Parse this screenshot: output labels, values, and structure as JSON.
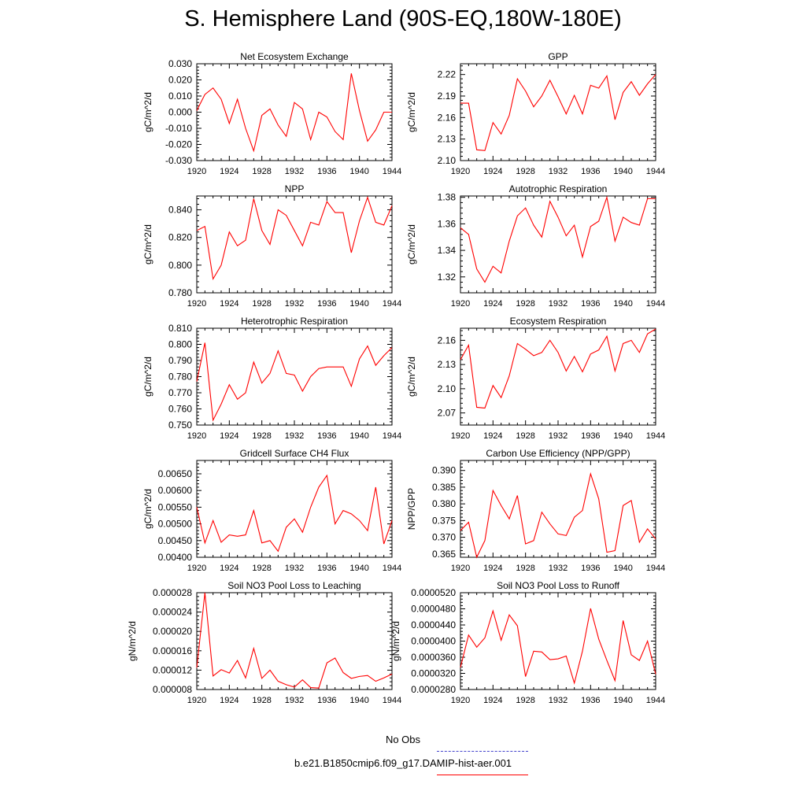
{
  "title": "S. Hemisphere Land (90S-EQ,180W-180E)",
  "legend": [
    {
      "label": "No Obs",
      "color": "#4444cc",
      "style": "dashed"
    },
    {
      "label": "b.e21.B1850cmip6.f09_g17.DAMIP-hist-aer.001",
      "color": "#ff0000",
      "style": "solid"
    }
  ],
  "chart_data": [
    {
      "type": "line",
      "title": "Net Ecosystem Exchange",
      "xlabel": "",
      "ylabel": "gC/m^2/d",
      "xlim": [
        1920,
        1944
      ],
      "ylim": [
        -0.03,
        0.03
      ],
      "xticks": [
        "1920",
        "1924",
        "1928",
        "1932",
        "1936",
        "1940",
        "1944"
      ],
      "yticks": [
        "-0.030",
        "-0.020",
        "-0.010",
        "0.000",
        "0.010",
        "0.020",
        "0.030"
      ],
      "yticks_values": [
        -0.03,
        -0.02,
        -0.01,
        0.0,
        0.01,
        0.02,
        0.03
      ],
      "series": [
        {
          "color": "#ff0000",
          "x": [
            1920,
            1921,
            1922,
            1923,
            1924,
            1925,
            1926,
            1927,
            1928,
            1929,
            1930,
            1931,
            1932,
            1933,
            1934,
            1935,
            1936,
            1937,
            1938,
            1939,
            1940,
            1941,
            1942,
            1943,
            1944
          ],
          "values": [
            0.001,
            0.011,
            0.015,
            0.008,
            -0.007,
            0.008,
            -0.01,
            -0.024,
            -0.002,
            0.002,
            -0.008,
            -0.015,
            0.006,
            0.002,
            -0.017,
            0.0,
            -0.003,
            -0.012,
            -0.017,
            0.024,
            0.001,
            -0.018,
            -0.011,
            0.0,
            0.0
          ]
        }
      ]
    },
    {
      "type": "line",
      "title": "GPP",
      "xlabel": "",
      "ylabel": "gC/m^2/d",
      "xlim": [
        1920,
        1944
      ],
      "ylim": [
        2.1,
        2.235
      ],
      "xticks": [
        "1920",
        "1924",
        "1928",
        "1932",
        "1936",
        "1940",
        "1944"
      ],
      "yticks": [
        "2.10",
        "2.13",
        "2.16",
        "2.19",
        "2.22"
      ],
      "yticks_values": [
        2.1,
        2.13,
        2.16,
        2.19,
        2.22
      ],
      "series": [
        {
          "color": "#ff0000",
          "x": [
            1920,
            1921,
            1922,
            1923,
            1924,
            1925,
            1926,
            1927,
            1928,
            1929,
            1930,
            1931,
            1932,
            1933,
            1934,
            1935,
            1936,
            1937,
            1938,
            1939,
            1940,
            1941,
            1942,
            1943,
            1944
          ],
          "values": [
            2.18,
            2.18,
            2.115,
            2.114,
            2.153,
            2.137,
            2.163,
            2.214,
            2.197,
            2.175,
            2.19,
            2.212,
            2.189,
            2.165,
            2.191,
            2.165,
            2.205,
            2.201,
            2.218,
            2.157,
            2.195,
            2.21,
            2.191,
            2.207,
            2.22
          ]
        }
      ]
    },
    {
      "type": "line",
      "title": "NPP",
      "xlabel": "",
      "ylabel": "gC/m^2/d",
      "xlim": [
        1920,
        1944
      ],
      "ylim": [
        0.78,
        0.85
      ],
      "xticks": [
        "1920",
        "1924",
        "1928",
        "1932",
        "1936",
        "1940",
        "1944"
      ],
      "yticks": [
        "0.780",
        "0.800",
        "0.820",
        "0.840"
      ],
      "yticks_values": [
        0.78,
        0.8,
        0.82,
        0.84
      ],
      "series": [
        {
          "color": "#ff0000",
          "x": [
            1920,
            1921,
            1922,
            1923,
            1924,
            1925,
            1926,
            1927,
            1928,
            1929,
            1930,
            1931,
            1932,
            1933,
            1934,
            1935,
            1936,
            1937,
            1938,
            1939,
            1940,
            1941,
            1942,
            1943,
            1944
          ],
          "values": [
            0.825,
            0.828,
            0.79,
            0.8,
            0.824,
            0.814,
            0.818,
            0.848,
            0.825,
            0.815,
            0.84,
            0.836,
            0.825,
            0.814,
            0.831,
            0.829,
            0.846,
            0.838,
            0.838,
            0.809,
            0.832,
            0.849,
            0.831,
            0.829,
            0.843
          ]
        }
      ]
    },
    {
      "type": "line",
      "title": "Autotrophic Respiration",
      "xlabel": "",
      "ylabel": "gC/m^2/d",
      "xlim": [
        1920,
        1944
      ],
      "ylim": [
        1.308,
        1.381
      ],
      "xticks": [
        "1920",
        "1924",
        "1928",
        "1932",
        "1936",
        "1940",
        "1944"
      ],
      "yticks": [
        "1.32",
        "1.34",
        "1.36",
        "1.38"
      ],
      "yticks_values": [
        1.32,
        1.34,
        1.36,
        1.38
      ],
      "series": [
        {
          "color": "#ff0000",
          "x": [
            1920,
            1921,
            1922,
            1923,
            1924,
            1925,
            1926,
            1927,
            1928,
            1929,
            1930,
            1931,
            1932,
            1933,
            1934,
            1935,
            1936,
            1937,
            1938,
            1939,
            1940,
            1941,
            1942,
            1943,
            1944
          ],
          "values": [
            1.357,
            1.352,
            1.326,
            1.316,
            1.328,
            1.323,
            1.347,
            1.366,
            1.372,
            1.359,
            1.35,
            1.377,
            1.365,
            1.351,
            1.359,
            1.335,
            1.358,
            1.362,
            1.38,
            1.347,
            1.365,
            1.361,
            1.359,
            1.379,
            1.379
          ]
        }
      ]
    },
    {
      "type": "line",
      "title": "Heterotrophic Respiration",
      "xlabel": "",
      "ylabel": "gC/m^2/d",
      "xlim": [
        1920,
        1944
      ],
      "ylim": [
        0.75,
        0.81
      ],
      "xticks": [
        "1920",
        "1924",
        "1928",
        "1932",
        "1936",
        "1940",
        "1944"
      ],
      "yticks": [
        "0.750",
        "0.760",
        "0.770",
        "0.780",
        "0.790",
        "0.800",
        "0.810"
      ],
      "yticks_values": [
        0.75,
        0.76,
        0.77,
        0.78,
        0.79,
        0.8,
        0.81
      ],
      "series": [
        {
          "color": "#ff0000",
          "x": [
            1920,
            1921,
            1922,
            1923,
            1924,
            1925,
            1926,
            1927,
            1928,
            1929,
            1930,
            1931,
            1932,
            1933,
            1934,
            1935,
            1936,
            1937,
            1938,
            1939,
            1940,
            1941,
            1942,
            1943,
            1944
          ],
          "values": [
            0.777,
            0.801,
            0.753,
            0.763,
            0.775,
            0.766,
            0.77,
            0.789,
            0.776,
            0.782,
            0.796,
            0.782,
            0.781,
            0.771,
            0.78,
            0.785,
            0.786,
            0.786,
            0.786,
            0.774,
            0.791,
            0.799,
            0.787,
            0.793,
            0.798
          ]
        }
      ]
    },
    {
      "type": "line",
      "title": "Ecosystem Respiration",
      "xlabel": "",
      "ylabel": "gC/m^2/d",
      "xlim": [
        1920,
        1944
      ],
      "ylim": [
        2.055,
        2.175
      ],
      "xticks": [
        "1920",
        "1924",
        "1928",
        "1932",
        "1936",
        "1940",
        "1944"
      ],
      "yticks": [
        "2.07",
        "2.10",
        "2.13",
        "2.16"
      ],
      "yticks_values": [
        2.07,
        2.1,
        2.13,
        2.16
      ],
      "series": [
        {
          "color": "#ff0000",
          "x": [
            1920,
            1921,
            1922,
            1923,
            1924,
            1925,
            1926,
            1927,
            1928,
            1929,
            1930,
            1931,
            1932,
            1933,
            1934,
            1935,
            1936,
            1937,
            1938,
            1939,
            1940,
            1941,
            1942,
            1943,
            1944
          ],
          "values": [
            2.136,
            2.154,
            2.077,
            2.076,
            2.104,
            2.089,
            2.116,
            2.156,
            2.149,
            2.141,
            2.145,
            2.16,
            2.145,
            2.122,
            2.14,
            2.121,
            2.143,
            2.148,
            2.165,
            2.122,
            2.156,
            2.16,
            2.145,
            2.168,
            2.174
          ]
        }
      ]
    },
    {
      "type": "line",
      "title": "Gridcell Surface CH4 Flux",
      "xlabel": "",
      "ylabel": "gC/m^2/d",
      "xlim": [
        1920,
        1944
      ],
      "ylim": [
        0.004,
        0.0069
      ],
      "xticks": [
        "1920",
        "1924",
        "1928",
        "1932",
        "1936",
        "1940",
        "1944"
      ],
      "yticks": [
        "0.00400",
        "0.00450",
        "0.00500",
        "0.00550",
        "0.00600",
        "0.00650"
      ],
      "yticks_values": [
        0.004,
        0.0045,
        0.005,
        0.0055,
        0.006,
        0.0065
      ],
      "series": [
        {
          "color": "#ff0000",
          "x": [
            1920,
            1921,
            1922,
            1923,
            1924,
            1925,
            1926,
            1927,
            1928,
            1929,
            1930,
            1931,
            1932,
            1933,
            1934,
            1935,
            1936,
            1937,
            1938,
            1939,
            1940,
            1941,
            1942,
            1943,
            1944
          ],
          "values": [
            0.0055,
            0.00443,
            0.0051,
            0.00445,
            0.00467,
            0.00463,
            0.00467,
            0.0054,
            0.00443,
            0.0045,
            0.00418,
            0.0049,
            0.00515,
            0.00475,
            0.0055,
            0.0061,
            0.00645,
            0.005,
            0.0054,
            0.0053,
            0.0051,
            0.0048,
            0.0061,
            0.0044,
            0.0051
          ]
        }
      ]
    },
    {
      "type": "line",
      "title": "Carbon Use Efficiency (NPP/GPP)",
      "xlabel": "",
      "ylabel": "NPP/GPP",
      "xlim": [
        1920,
        1944
      ],
      "ylim": [
        0.364,
        0.393
      ],
      "xticks": [
        "1920",
        "1924",
        "1928",
        "1932",
        "1936",
        "1940",
        "1944"
      ],
      "yticks": [
        "0.365",
        "0.370",
        "0.375",
        "0.380",
        "0.385",
        "0.390"
      ],
      "yticks_values": [
        0.365,
        0.37,
        0.375,
        0.38,
        0.385,
        0.39
      ],
      "series": [
        {
          "color": "#ff0000",
          "x": [
            1920,
            1921,
            1922,
            1923,
            1924,
            1925,
            1926,
            1927,
            1928,
            1929,
            1930,
            1931,
            1932,
            1933,
            1934,
            1935,
            1936,
            1937,
            1938,
            1939,
            1940,
            1941,
            1942,
            1943,
            1944
          ],
          "values": [
            0.372,
            0.3745,
            0.364,
            0.369,
            0.384,
            0.3795,
            0.3755,
            0.3825,
            0.368,
            0.369,
            0.3775,
            0.374,
            0.371,
            0.3705,
            0.376,
            0.378,
            0.389,
            0.3815,
            0.3655,
            0.366,
            0.3795,
            0.381,
            0.3685,
            0.3725,
            0.3695
          ]
        }
      ]
    },
    {
      "type": "line",
      "title": "Soil NO3 Pool Loss to Leaching",
      "xlabel": "",
      "ylabel": "gN/m^2/d",
      "xlim": [
        1920,
        1944
      ],
      "ylim": [
        8e-06,
        2.8e-05
      ],
      "xticks": [
        "1920",
        "1924",
        "1928",
        "1932",
        "1936",
        "1940",
        "1944"
      ],
      "yticks": [
        "0.000008",
        "0.000012",
        "0.000016",
        "0.000020",
        "0.000024",
        "0.000028"
      ],
      "yticks_values": [
        8e-06,
        1.2e-05,
        1.6e-05,
        2e-05,
        2.4e-05,
        2.8e-05
      ],
      "series": [
        {
          "color": "#ff0000",
          "x": [
            1920,
            1921,
            1922,
            1923,
            1924,
            1925,
            1926,
            1927,
            1928,
            1929,
            1930,
            1931,
            1932,
            1933,
            1934,
            1935,
            1936,
            1937,
            1938,
            1939,
            1940,
            1941,
            1942,
            1943,
            1944
          ],
          "values": [
            1.25e-05,
            2.8e-05,
            1.08e-05,
            1.21e-05,
            1.14e-05,
            1.4e-05,
            1.04e-05,
            1.65e-05,
            1.03e-05,
            1.2e-05,
            9.7e-06,
            9e-06,
            8.5e-06,
            1e-05,
            8.4e-06,
            8.3e-06,
            1.35e-05,
            1.45e-05,
            1.15e-05,
            1.03e-05,
            1.07e-05,
            1.09e-05,
            9.7e-06,
            1.04e-05,
            1.12e-05
          ]
        }
      ]
    },
    {
      "type": "line",
      "title": "Soil NO3 Pool Loss to Runoff",
      "xlabel": "",
      "ylabel": "gN/m^2/d",
      "xlim": [
        1920,
        1944
      ],
      "ylim": [
        2.8e-05,
        5.2e-05
      ],
      "xticks": [
        "1920",
        "1924",
        "1928",
        "1932",
        "1936",
        "1940",
        "1944"
      ],
      "yticks": [
        "0.0000280",
        "0.0000320",
        "0.0000360",
        "0.0000400",
        "0.0000440",
        "0.0000480",
        "0.0000520"
      ],
      "yticks_values": [
        2.8e-05,
        3.2e-05,
        3.6e-05,
        4e-05,
        4.4e-05,
        4.8e-05,
        5.2e-05
      ],
      "series": [
        {
          "color": "#ff0000",
          "x": [
            1920,
            1921,
            1922,
            1923,
            1924,
            1925,
            1926,
            1927,
            1928,
            1929,
            1930,
            1931,
            1932,
            1933,
            1934,
            1935,
            1936,
            1937,
            1938,
            1939,
            1940,
            1941,
            1942,
            1943,
            1944
          ],
          "values": [
            3.35e-05,
            4.15e-05,
            3.85e-05,
            4.08e-05,
            4.75e-05,
            4.02e-05,
            4.65e-05,
            4.38e-05,
            3.12e-05,
            3.75e-05,
            3.73e-05,
            3.54e-05,
            3.56e-05,
            3.63e-05,
            2.96e-05,
            3.75e-05,
            4.81e-05,
            4.05e-05,
            3.52e-05,
            3.02e-05,
            4.51e-05,
            3.66e-05,
            3.52e-05,
            4e-05,
            3.18e-05
          ]
        }
      ]
    }
  ]
}
